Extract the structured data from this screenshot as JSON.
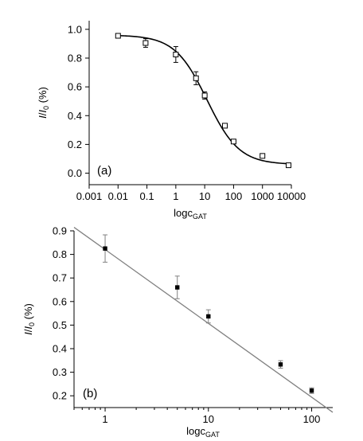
{
  "chart_data": [
    {
      "type": "scatter",
      "panel_label": "(a)",
      "xlabel": "logc",
      "xlabel_sub": "GAT",
      "ylabel_italic": "I",
      "ylabel_mid": "/",
      "ylabel_italic2": "I",
      "ylabel_sub": "0",
      "ylabel_unit": " (%)",
      "x_scale": "log",
      "xlim": [
        0.001,
        10000
      ],
      "ylim": [
        -0.08,
        1.06
      ],
      "x_ticks": [
        0.001,
        0.01,
        0.1,
        1,
        10,
        100,
        1000,
        10000
      ],
      "x_tick_labels": [
        "0.001",
        "0.01",
        "0.1",
        "1",
        "10",
        "100",
        "1000",
        "10000"
      ],
      "y_ticks": [
        0.0,
        0.2,
        0.4,
        0.6,
        0.8,
        1.0
      ],
      "y_tick_labels": [
        "0.0",
        "0.2",
        "0.4",
        "0.6",
        "0.8",
        "1.0"
      ],
      "grid": false,
      "marker": "open-square",
      "series": [
        {
          "x": [
            0.01,
            0.09,
            1,
            5,
            10,
            50,
            100,
            1000,
            8000
          ],
          "y": [
            0.955,
            0.905,
            0.825,
            0.66,
            0.54,
            0.33,
            0.22,
            0.12,
            0.055
          ],
          "yerr": [
            0.015,
            0.03,
            0.055,
            0.045,
            0.025,
            0.012,
            0.01,
            0.01,
            0.01
          ]
        }
      ],
      "fit_curve": {
        "type": "logistic",
        "top": 0.96,
        "bottom": 0.06,
        "x50": 12,
        "slope": 0.78
      }
    },
    {
      "type": "scatter",
      "panel_label": "(b)",
      "xlabel": "logc",
      "xlabel_sub": "GAT",
      "ylabel_italic": "I",
      "ylabel_mid": "/",
      "ylabel_italic2": "I",
      "ylabel_sub": "0",
      "ylabel_unit": " (%)",
      "x_scale": "log",
      "xlim": [
        0.5,
        160
      ],
      "ylim": [
        0.15,
        0.9
      ],
      "x_ticks": [
        1,
        10,
        100
      ],
      "x_tick_labels": [
        "1",
        "10",
        "100"
      ],
      "y_ticks": [
        0.2,
        0.3,
        0.4,
        0.5,
        0.6,
        0.7,
        0.8,
        0.9
      ],
      "y_tick_labels": [
        "0.2",
        "0.3",
        "0.4",
        "0.5",
        "0.6",
        "0.7",
        "0.8",
        "0.9"
      ],
      "grid": false,
      "marker": "filled-square",
      "series": [
        {
          "x": [
            1,
            5,
            10,
            50,
            100
          ],
          "y": [
            0.825,
            0.66,
            0.537,
            0.333,
            0.222
          ],
          "yerr": [
            0.058,
            0.048,
            0.028,
            0.016,
            0.012
          ]
        }
      ],
      "fit_line": {
        "x": [
          0.5,
          160
        ],
        "y": [
          0.915,
          0.13
        ]
      }
    }
  ]
}
